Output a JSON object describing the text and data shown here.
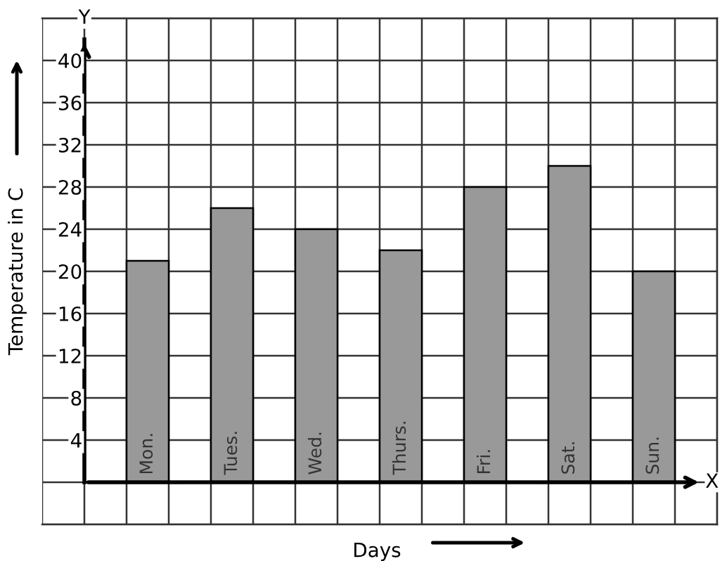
{
  "chart_data": {
    "type": "bar",
    "xlabel": "Days",
    "ylabel": "Temperature in C",
    "categories": [
      "Mon.",
      "Tues.",
      "Wed.",
      "Thurs.",
      "Fri.",
      "Sat.",
      "Sun."
    ],
    "values": [
      21,
      26,
      24,
      22,
      28,
      30,
      20
    ],
    "color": "#999999",
    "ylim": [
      -4,
      44
    ],
    "yticks": [
      4,
      8,
      12,
      16,
      20,
      24,
      28,
      32,
      36,
      40
    ],
    "grid": true,
    "annotations": [
      "Y",
      "X"
    ]
  }
}
